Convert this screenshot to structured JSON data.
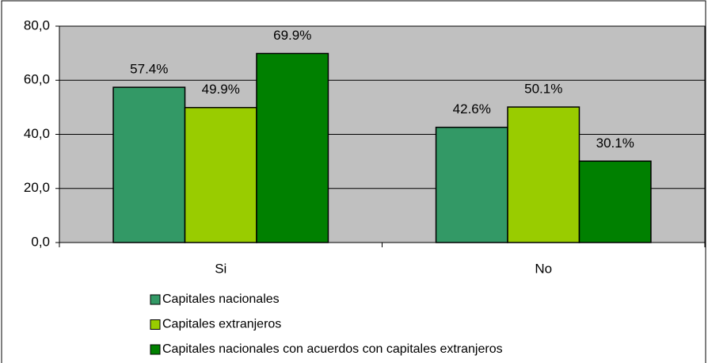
{
  "chart_data": {
    "type": "bar",
    "categories": [
      "Si",
      "No"
    ],
    "series": [
      {
        "name": "Capitales nacionales",
        "color": "#339966",
        "values": [
          57.4,
          42.6
        ],
        "value_labels": [
          "57.4%",
          "42.6%"
        ]
      },
      {
        "name": "Capitales extranjeros",
        "color": "#99cc00",
        "values": [
          49.9,
          50.1
        ],
        "value_labels": [
          "49.9%",
          "50.1%"
        ]
      },
      {
        "name": "Capitales nacionales con acuerdos con capitales extranjeros",
        "color": "#008000",
        "values": [
          69.9,
          30.1
        ],
        "value_labels": [
          "69.9%",
          "30.1%"
        ]
      }
    ],
    "ylim": [
      0,
      80
    ],
    "yticks": [
      {
        "value": 0,
        "label": "0,0"
      },
      {
        "value": 20,
        "label": "20,0"
      },
      {
        "value": 40,
        "label": "40,0"
      },
      {
        "value": 60,
        "label": "60,0"
      },
      {
        "value": 80,
        "label": "80,0"
      }
    ],
    "grid": true,
    "plot_background": "#c0c0c0"
  }
}
